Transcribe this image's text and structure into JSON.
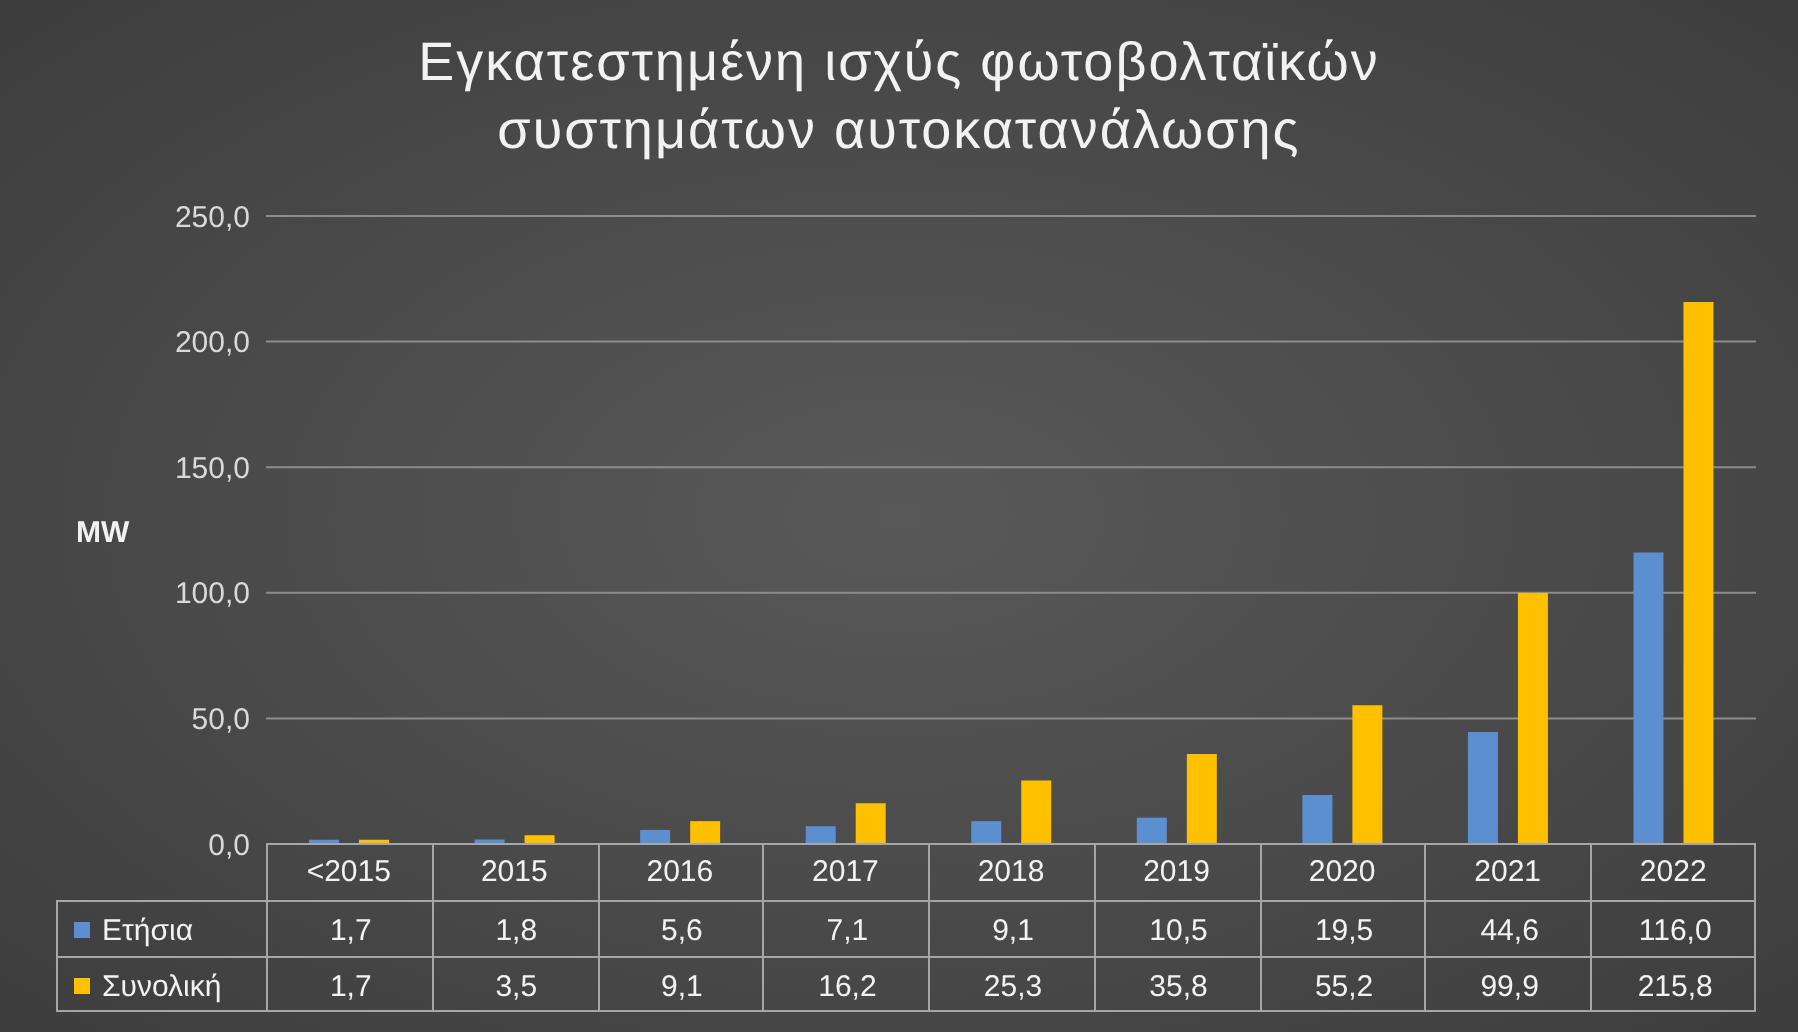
{
  "chart_data": {
    "type": "bar",
    "title": "Εγκατεστημένη ισχύς φωτοβολταϊκών\nσυστημάτων αυτοκατανάλωσης",
    "ylabel": "MW",
    "categories": [
      "<2015",
      "2015",
      "2016",
      "2017",
      "2018",
      "2019",
      "2020",
      "2021",
      "2022"
    ],
    "series": [
      {
        "name": "Ετήσια",
        "color": "#5b8fd0",
        "values": [
          1.7,
          1.8,
          5.6,
          7.1,
          9.1,
          10.5,
          19.5,
          44.6,
          116.0
        ],
        "value_labels": [
          "1,7",
          "1,8",
          "5,6",
          "7,1",
          "9,1",
          "10,5",
          "19,5",
          "44,6",
          "116,0"
        ]
      },
      {
        "name": "Συνολική",
        "color": "#ffc000",
        "values": [
          1.7,
          3.5,
          9.1,
          16.2,
          25.3,
          35.8,
          55.2,
          99.9,
          215.8
        ],
        "value_labels": [
          "1,7",
          "3,5",
          "9,1",
          "16,2",
          "25,3",
          "35,8",
          "55,2",
          "99,9",
          "215,8"
        ]
      }
    ],
    "ylim": [
      0,
      250
    ],
    "yticks": [
      {
        "value": 0,
        "label": "0,0"
      },
      {
        "value": 50,
        "label": "50,0"
      },
      {
        "value": 100,
        "label": "100,0"
      },
      {
        "value": 150,
        "label": "150,0"
      },
      {
        "value": 200,
        "label": "200,0"
      },
      {
        "value": 250,
        "label": "250,0"
      }
    ],
    "grid": "y",
    "legend": "bottom"
  }
}
